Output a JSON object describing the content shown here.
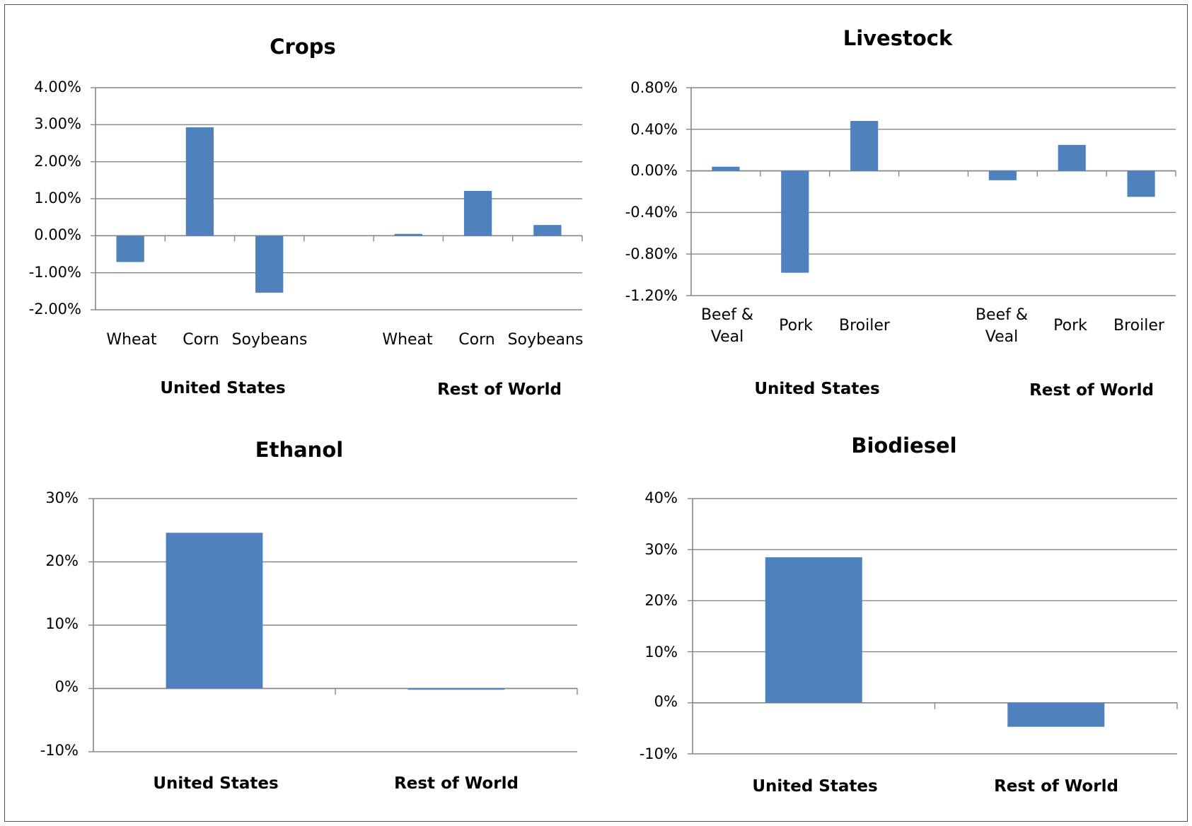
{
  "colors": {
    "bar": "#4f81bd",
    "grid": "#868686",
    "axis": "#868686"
  },
  "chart_data": [
    {
      "type": "bar",
      "title": "Crops",
      "ylim": [
        -0.02,
        0.04
      ],
      "yticks": [
        "4.00%",
        "3.00%",
        "2.00%",
        "1.00%",
        "0.00%",
        "-1.00%",
        "-2.00%"
      ],
      "categories": [
        "Wheat",
        "Corn",
        "Soybeans",
        "",
        "Wheat",
        "Corn",
        "Soybeans"
      ],
      "values": [
        -0.0071,
        0.0293,
        -0.0154,
        null,
        0.0005,
        0.0121,
        0.0029
      ],
      "groups": [
        "United States",
        "Rest of World"
      ],
      "grid": true
    },
    {
      "type": "bar",
      "title": "Livestock",
      "ylim": [
        -0.012,
        0.008
      ],
      "yticks": [
        "0.80%",
        "0.40%",
        "0.00%",
        "-0.40%",
        "-0.80%",
        "-1.20%"
      ],
      "categories": [
        "Beef & Veal",
        "Pork",
        "Broiler",
        "",
        "Beef & Veal",
        "Pork",
        "Broiler"
      ],
      "values": [
        0.0004,
        -0.0098,
        0.0048,
        null,
        -0.0009,
        0.0025,
        -0.0025
      ],
      "groups": [
        "United States",
        "Rest of World"
      ],
      "grid": true
    },
    {
      "type": "bar",
      "title": "Ethanol",
      "ylim": [
        -0.1,
        0.3
      ],
      "yticks": [
        "30%",
        "20%",
        "10%",
        "0%",
        "-10%"
      ],
      "categories": [
        "United States",
        "Rest of World"
      ],
      "values": [
        0.246,
        -0.002
      ],
      "grid": true
    },
    {
      "type": "bar",
      "title": "Biodiesel",
      "ylim": [
        -0.1,
        0.4
      ],
      "yticks": [
        "40%",
        "30%",
        "20%",
        "10%",
        "0%",
        "-10%"
      ],
      "categories": [
        "United States",
        "Rest of World"
      ],
      "values": [
        0.285,
        -0.047
      ],
      "grid": true
    }
  ]
}
